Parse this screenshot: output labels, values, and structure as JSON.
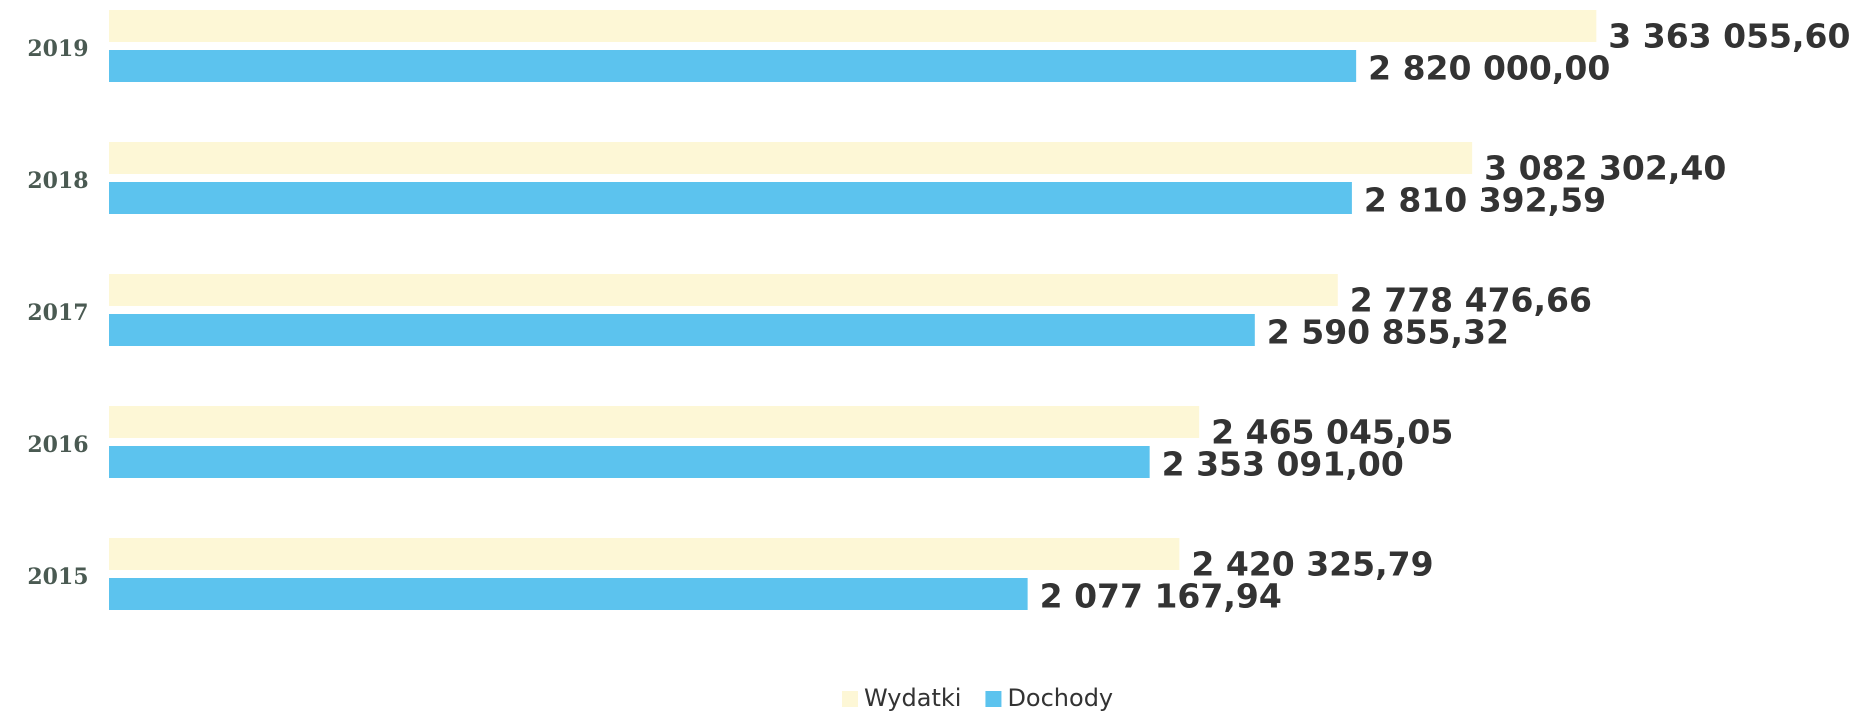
{
  "chart_data": {
    "type": "hbar",
    "categories": [
      "2019",
      "2018",
      "2017",
      "2016",
      "2015"
    ],
    "series": [
      {
        "name": "Wydatki",
        "color": "#fdf7d6",
        "values": [
          3363055.6,
          3082302.4,
          2778476.66,
          2465045.05,
          2420325.79
        ],
        "value_labels": [
          "3 363 055,60",
          "3 082 302,40",
          "2 778 476,66",
          "2 465 045,05",
          "2 420 325,79"
        ]
      },
      {
        "name": "Dochody",
        "color": "#5cc3ee",
        "values": [
          2820000.0,
          2810392.59,
          2590855.32,
          2353091.0,
          2077167.94
        ],
        "value_labels": [
          "2 820 000,00",
          "2 810 392,59",
          "2 590 855,32",
          "2 353 091,00",
          "2 077 167,94"
        ]
      }
    ],
    "xlim": [
      0,
      4000000
    ],
    "legend": "bottom"
  }
}
